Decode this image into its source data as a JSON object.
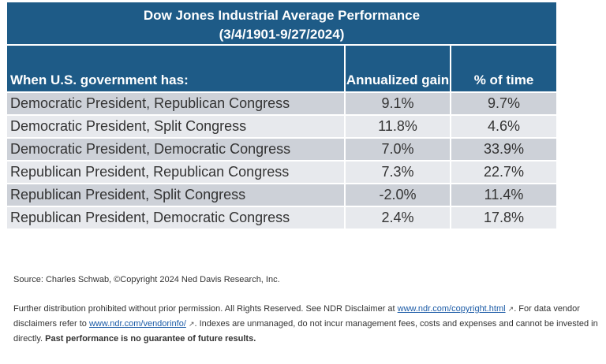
{
  "table": {
    "title_line1": "Dow Jones Industrial Average Performance",
    "title_line2": "(3/4/1901-9/27/2024)",
    "headers": [
      "When U.S. government has:",
      "Annualized gain",
      "% of time"
    ],
    "rows": [
      [
        "Democratic President, Republican Congress",
        "9.1%",
        "9.7%"
      ],
      [
        "Democratic President, Split Congress",
        "11.8%",
        "4.6%"
      ],
      [
        "Democratic President, Democratic Congress",
        "7.0%",
        "33.9%"
      ],
      [
        "Republican President, Republican Congress",
        "7.3%",
        "22.7%"
      ],
      [
        "Republican President, Split Congress",
        "-2.0%",
        "11.4%"
      ],
      [
        "Republican President, Democratic Congress",
        "2.4%",
        "17.8%"
      ]
    ]
  },
  "footer": {
    "source": "Source: Charles Schwab, ©Copyright 2024 Ned Davis Research, Inc.",
    "text1": "Further distribution prohibited without prior permission. All Rights Reserved. See NDR Disclaimer at ",
    "link1": "www.ndr.com/copyright.html",
    "text2": ". For data vendor disclaimers refer to ",
    "link2": "www.ndr.com/vendorinfo/",
    "text3": ". Indexes are unmanaged, do not incur management fees, costs and expenses and cannot be invested in directly. ",
    "bold": "Past performance is no guarantee of future results.",
    "external_icon": "↗"
  },
  "colors": {
    "header_bg": "#1e5b87",
    "row_dark": "#cdd1d8",
    "row_light": "#e7e9ed",
    "link": "#1a5aa6"
  }
}
